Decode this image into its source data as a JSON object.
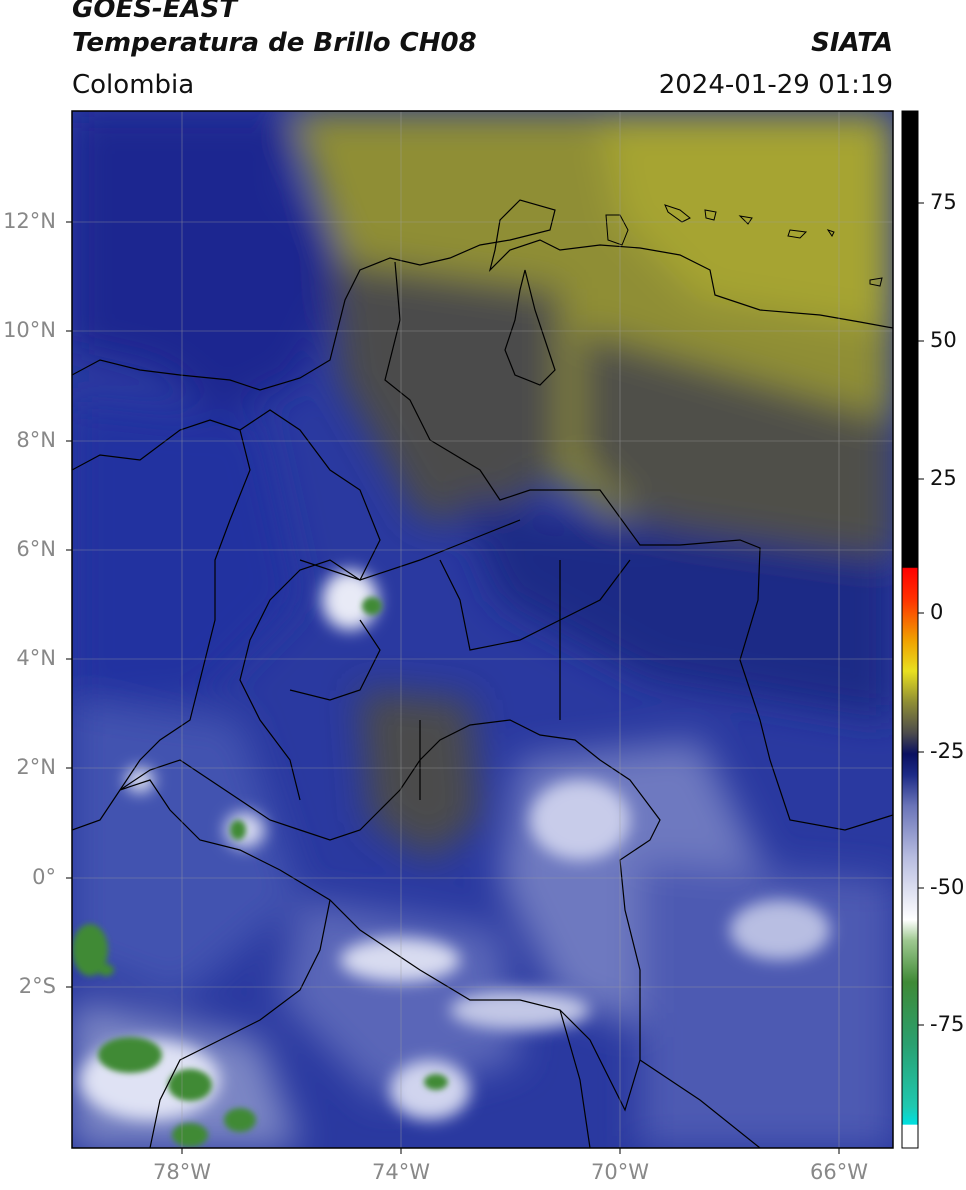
{
  "header": {
    "satellite": "GOES-EAST",
    "product": "Temperatura de Brillo CH08",
    "region": "Colombia",
    "agency": "SIATA",
    "datetime": "2024-01-29 01:19"
  },
  "map": {
    "lon_range": [
      -80,
      -65
    ],
    "lat_range": [
      -5,
      14
    ],
    "lat_labels": [
      "12°N",
      "10°N",
      "8°N",
      "6°N",
      "4°N",
      "2°N",
      "0°",
      "2°S"
    ],
    "lon_labels": [
      "78°W",
      "74°W",
      "70°W",
      "66°W"
    ],
    "colors": {
      "warm_olive": "#8f8e34",
      "gray": "#4c4b4c",
      "navy": "#1c2a86",
      "blue": "#3a4aa8",
      "light_blue": "#8c96cc",
      "white": "#f4f4fa",
      "green": "#3f8a36"
    }
  },
  "colorbar": {
    "labels": [
      "75",
      "50",
      "25",
      "0",
      "-25",
      "-50",
      "-75"
    ],
    "vmin": -95,
    "vmax": 90
  }
}
